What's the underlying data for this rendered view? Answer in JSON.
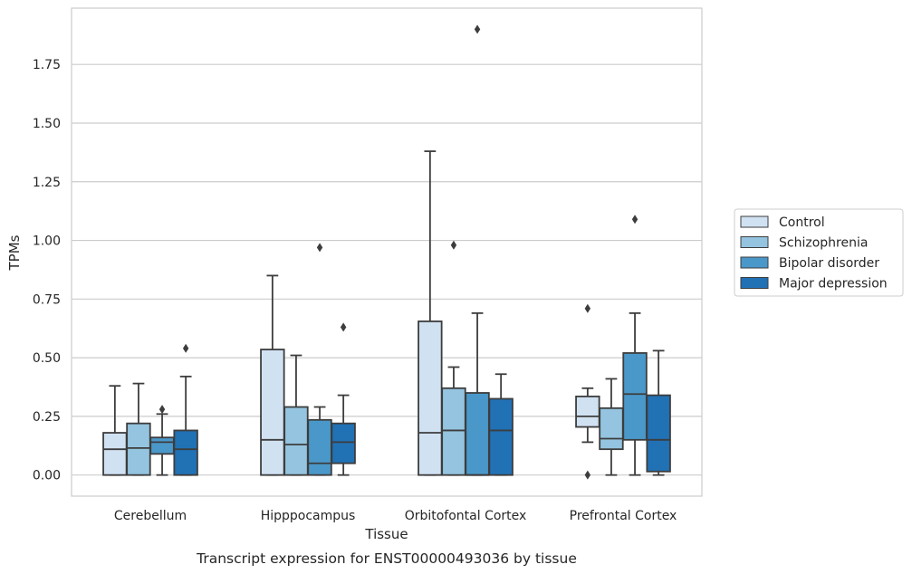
{
  "chart_data": {
    "type": "boxplot",
    "title": "",
    "caption": "Transcript expression for ENST00000493036 by tissue",
    "xlabel": "Tissue",
    "ylabel": "TPMs",
    "ylim": [
      -0.09,
      1.99
    ],
    "yticks": [
      0.0,
      0.25,
      0.5,
      0.75,
      1.0,
      1.25,
      1.5,
      1.75
    ],
    "ytick_labels": [
      "0.00",
      "0.25",
      "0.50",
      "0.75",
      "1.00",
      "1.25",
      "1.50",
      "1.75"
    ],
    "grid": "horizontal",
    "legend_position": "right",
    "categories": [
      "Cerebellum",
      "Hipppocampus",
      "Orbitofontal Cortex",
      "Prefrontal Cortex"
    ],
    "series": [
      {
        "name": "Control",
        "color": "#d0e1f2",
        "boxes": [
          {
            "whislo": 0.0,
            "q1": 0.0,
            "med": 0.11,
            "q3": 0.18,
            "whishi": 0.38,
            "fliers": []
          },
          {
            "whislo": 0.0,
            "q1": 0.0,
            "med": 0.15,
            "q3": 0.535,
            "whishi": 0.85,
            "fliers": []
          },
          {
            "whislo": 0.0,
            "q1": 0.0,
            "med": 0.18,
            "q3": 0.655,
            "whishi": 1.38,
            "fliers": []
          },
          {
            "whislo": 0.14,
            "q1": 0.205,
            "med": 0.25,
            "q3": 0.335,
            "whishi": 0.37,
            "fliers": [
              0.0,
              0.71
            ]
          }
        ]
      },
      {
        "name": "Schizophrenia",
        "color": "#94c4df",
        "boxes": [
          {
            "whislo": 0.0,
            "q1": 0.0,
            "med": 0.115,
            "q3": 0.22,
            "whishi": 0.39,
            "fliers": []
          },
          {
            "whislo": 0.0,
            "q1": 0.0,
            "med": 0.13,
            "q3": 0.29,
            "whishi": 0.51,
            "fliers": []
          },
          {
            "whislo": 0.0,
            "q1": 0.0,
            "med": 0.19,
            "q3": 0.37,
            "whishi": 0.46,
            "fliers": [
              0.98
            ]
          },
          {
            "whislo": 0.0,
            "q1": 0.11,
            "med": 0.155,
            "q3": 0.285,
            "whishi": 0.41,
            "fliers": []
          }
        ]
      },
      {
        "name": "Bipolar disorder",
        "color": "#4a98c9",
        "boxes": [
          {
            "whislo": 0.0,
            "q1": 0.09,
            "med": 0.14,
            "q3": 0.16,
            "whishi": 0.26,
            "fliers": [
              0.28
            ]
          },
          {
            "whislo": 0.0,
            "q1": 0.0,
            "med": 0.05,
            "q3": 0.235,
            "whishi": 0.29,
            "fliers": [
              0.97
            ]
          },
          {
            "whislo": 0.0,
            "q1": 0.0,
            "med": 0.0,
            "q3": 0.35,
            "whishi": 0.69,
            "fliers": [
              1.9
            ]
          },
          {
            "whislo": 0.0,
            "q1": 0.15,
            "med": 0.345,
            "q3": 0.52,
            "whishi": 0.69,
            "fliers": [
              1.09
            ]
          }
        ]
      },
      {
        "name": "Major depression",
        "color": "#2171b5",
        "boxes": [
          {
            "whislo": 0.0,
            "q1": 0.0,
            "med": 0.11,
            "q3": 0.19,
            "whishi": 0.42,
            "fliers": [
              0.54
            ]
          },
          {
            "whislo": 0.0,
            "q1": 0.05,
            "med": 0.14,
            "q3": 0.22,
            "whishi": 0.34,
            "fliers": [
              0.63
            ]
          },
          {
            "whislo": 0.0,
            "q1": 0.0,
            "med": 0.19,
            "q3": 0.325,
            "whishi": 0.43,
            "fliers": []
          },
          {
            "whislo": 0.0,
            "q1": 0.015,
            "med": 0.15,
            "q3": 0.34,
            "whishi": 0.53,
            "fliers": []
          }
        ]
      }
    ]
  }
}
